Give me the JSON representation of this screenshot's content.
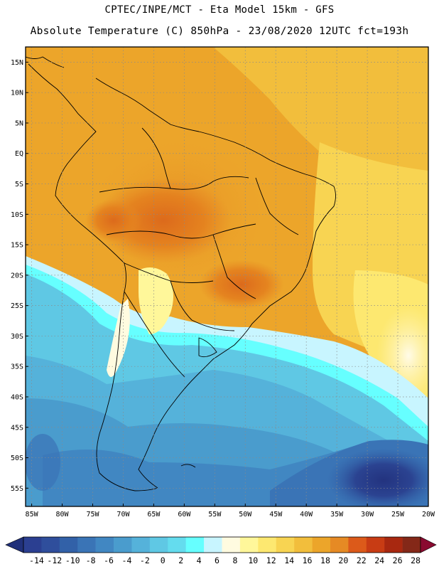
{
  "header": {
    "line1": "CPTEC/INPE/MCT -  Eta Model 15km - GFS",
    "line2": "Absolute Temperature (C) 850hPa - 23/08/2020 12UTC fct=193h"
  },
  "map": {
    "lat_labels": [
      "15N",
      "10N",
      "5N",
      "EQ",
      "5S",
      "10S",
      "15S",
      "20S",
      "25S",
      "30S",
      "35S",
      "40S",
      "45S",
      "50S",
      "55S"
    ],
    "lon_labels": [
      "85W",
      "80W",
      "75W",
      "70W",
      "65W",
      "60W",
      "55W",
      "50W",
      "45W",
      "40W",
      "35W",
      "30W",
      "25W",
      "20W"
    ],
    "lon_extent_deg": [
      -86,
      -20
    ],
    "lat_extent_deg": [
      17.5,
      -58
    ]
  },
  "colorbar": {
    "labels": [
      "-14",
      "-12",
      "-10",
      "-8",
      "-6",
      "-4",
      "-2",
      "0",
      "2",
      "4",
      "6",
      "8",
      "10",
      "12",
      "14",
      "16",
      "18",
      "20",
      "22",
      "24",
      "26",
      "28"
    ],
    "colors": [
      "#2b3f91",
      "#2f4e9c",
      "#3261a8",
      "#3a74b6",
      "#4187c2",
      "#4a9ccd",
      "#55b2da",
      "#5fc8e4",
      "#64dcee",
      "#66ffff",
      "#c8f5ff",
      "#fffbe0",
      "#fff79a",
      "#fde870",
      "#f8d452",
      "#f2be3c",
      "#eca52a",
      "#e68a24",
      "#dc5a1a",
      "#c83c14",
      "#a82810",
      "#842818"
    ],
    "low_color": "#20307a",
    "high_color": "#8a0a30"
  },
  "icons": [
    "map-panel",
    "coastline-overlay",
    "colorbar"
  ]
}
